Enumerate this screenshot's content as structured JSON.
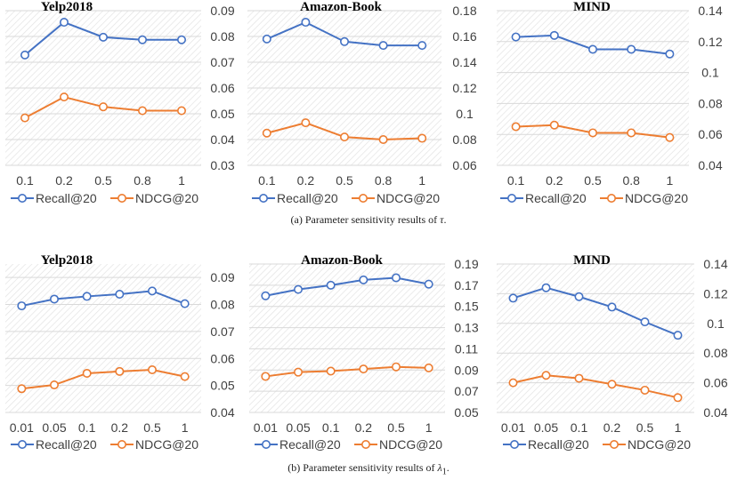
{
  "colors": {
    "recall": "#4472C4",
    "ndcg": "#ED7D31",
    "grid": "#d9d9d9",
    "hatch": "#e6e6e6",
    "axis_text": "#404040"
  },
  "captions": {
    "a_prefix": "(a) Parameter sensitivity results of ",
    "a_symbol": "τ",
    "b_prefix": "(b) Parameter sensitivity results of ",
    "b_symbol": "λ",
    "b_subscript": "1",
    "suffix": "."
  },
  "chart_data": [
    {
      "type": "line",
      "title": "Yelp2018",
      "categories": [
        "0.1",
        "0.2",
        "0.5",
        "0.8",
        "1"
      ],
      "yticks": [
        "0.03",
        "0.04",
        "0.05",
        "0.06",
        "0.07",
        "0.08",
        "0.09"
      ],
      "ylim": [
        0.03,
        0.09
      ],
      "series": [
        {
          "name": "Recall@20",
          "values": [
            0.0728,
            0.0855,
            0.0797,
            0.0787,
            0.0787
          ]
        },
        {
          "name": "NDCG@20",
          "values": [
            0.0484,
            0.0565,
            0.0527,
            0.0512,
            0.0512
          ]
        }
      ],
      "legend": "bottom",
      "grid": true
    },
    {
      "type": "line",
      "title": "Amazon-Book",
      "categories": [
        "0.1",
        "0.2",
        "0.5",
        "0.8",
        "1"
      ],
      "yticks": [
        "0.06",
        "0.08",
        "0.1",
        "0.12",
        "0.14",
        "0.16",
        "0.18"
      ],
      "ylim": [
        0.06,
        0.18
      ],
      "series": [
        {
          "name": "Recall@20",
          "values": [
            0.158,
            0.171,
            0.156,
            0.153,
            0.153
          ]
        },
        {
          "name": "NDCG@20",
          "values": [
            0.085,
            0.093,
            0.082,
            0.08,
            0.081
          ]
        }
      ],
      "legend": "bottom",
      "grid": true
    },
    {
      "type": "line",
      "title": "MIND",
      "categories": [
        "0.1",
        "0.2",
        "0.5",
        "0.8",
        "1"
      ],
      "yticks": [
        "0.04",
        "0.06",
        "0.08",
        "0.1",
        "0.12",
        "0.14"
      ],
      "ylim": [
        0.04,
        0.14
      ],
      "series": [
        {
          "name": "Recall@20",
          "values": [
            0.123,
            0.124,
            0.115,
            0.115,
            0.112
          ]
        },
        {
          "name": "NDCG@20",
          "values": [
            0.065,
            0.066,
            0.061,
            0.061,
            0.058
          ]
        }
      ],
      "legend": "bottom",
      "grid": true
    },
    {
      "type": "line",
      "title": "Yelp2018",
      "categories": [
        "0.01",
        "0.05",
        "0.1",
        "0.2",
        "0.5",
        "1"
      ],
      "yticks": [
        "0.04",
        "0.05",
        "0.06",
        "0.07",
        "0.08",
        "0.09"
      ],
      "ylim": [
        0.04,
        0.095
      ],
      "series": [
        {
          "name": "Recall@20",
          "values": [
            0.0795,
            0.082,
            0.083,
            0.0838,
            0.085,
            0.0803
          ]
        },
        {
          "name": "NDCG@20",
          "values": [
            0.0488,
            0.0502,
            0.0545,
            0.0552,
            0.0558,
            0.0533
          ]
        }
      ],
      "legend": "bottom",
      "grid": true
    },
    {
      "type": "line",
      "title": "Amazon-Book",
      "categories": [
        "0.01",
        "0.05",
        "0.1",
        "0.2",
        "0.5",
        "1"
      ],
      "yticks": [
        "0.05",
        "0.07",
        "0.09",
        "0.11",
        "0.13",
        "0.15",
        "0.17",
        "0.19"
      ],
      "ylim": [
        0.05,
        0.19
      ],
      "series": [
        {
          "name": "Recall@20",
          "values": [
            0.16,
            0.166,
            0.17,
            0.175,
            0.177,
            0.171
          ]
        },
        {
          "name": "NDCG@20",
          "values": [
            0.084,
            0.088,
            0.089,
            0.091,
            0.093,
            0.092
          ]
        }
      ],
      "legend": "bottom",
      "grid": true
    },
    {
      "type": "line",
      "title": "MIND",
      "categories": [
        "0.01",
        "0.05",
        "0.1",
        "0.2",
        "0.5",
        "1"
      ],
      "yticks": [
        "0.04",
        "0.06",
        "0.08",
        "0.1",
        "0.12",
        "0.14"
      ],
      "ylim": [
        0.04,
        0.14
      ],
      "series": [
        {
          "name": "Recall@20",
          "values": [
            0.117,
            0.124,
            0.118,
            0.111,
            0.101,
            0.092
          ]
        },
        {
          "name": "NDCG@20",
          "values": [
            0.06,
            0.065,
            0.063,
            0.059,
            0.055,
            0.05
          ]
        }
      ],
      "legend": "bottom",
      "grid": true
    }
  ]
}
